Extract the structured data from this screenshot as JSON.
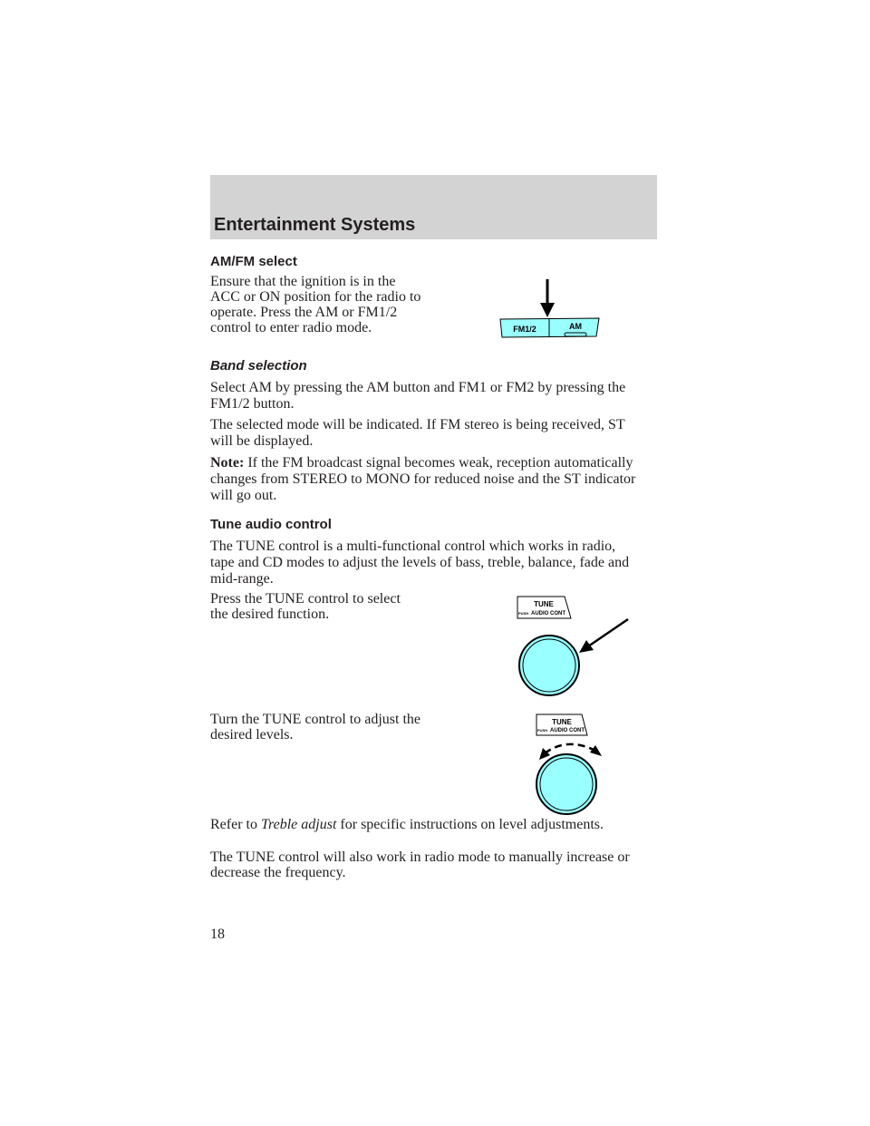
{
  "header": {
    "title": "Entertainment Systems"
  },
  "sections": {
    "amfm": {
      "heading": "AM/FM select",
      "lines": [
        "Ensure that the ignition is in the",
        "ACC or ON position for the radio to",
        "operate. Press the AM or FM1/2",
        "control to enter radio mode."
      ]
    },
    "band": {
      "heading": "Band selection",
      "p1": [
        "Select AM by pressing the AM button and FM1 or FM2 by pressing the",
        "FM1/2 button."
      ],
      "p2": [
        "The selected mode will be indicated. If FM stereo is being received, ST",
        "will be displayed."
      ],
      "note_label": "Note:",
      "p3": [
        "If the FM broadcast signal becomes weak, reception automatically",
        "changes from STEREO to MONO for reduced noise and the ST indicator",
        "will go out."
      ]
    },
    "tune": {
      "heading": "Tune audio control",
      "p1": [
        "The TUNE control is a multi-functional control which works in radio,",
        "tape and CD modes to adjust the levels of bass, treble, balance, fade and",
        "mid-range."
      ],
      "p2": [
        "Press the TUNE control to select",
        "the desired function."
      ],
      "p3": [
        "Turn the TUNE control to adjust the",
        "desired levels."
      ],
      "p4_prefix": "Refer to ",
      "p4_italic": "Treble adjust",
      "p4_suffix": " for specific instructions on level adjustments.",
      "p5": [
        "The TUNE control will also work in radio mode to manually increase or",
        "decrease the frequency."
      ]
    }
  },
  "figures": {
    "buttons": {
      "left": "FM1/2",
      "right": "AM"
    },
    "knob_label": {
      "title": "TUNE",
      "push": "PUSH",
      "sub": "AUDIO CONT"
    }
  },
  "colors": {
    "header_bg": "#d3d3d3",
    "figure_fill": "#99ffff"
  },
  "page_number": "18"
}
